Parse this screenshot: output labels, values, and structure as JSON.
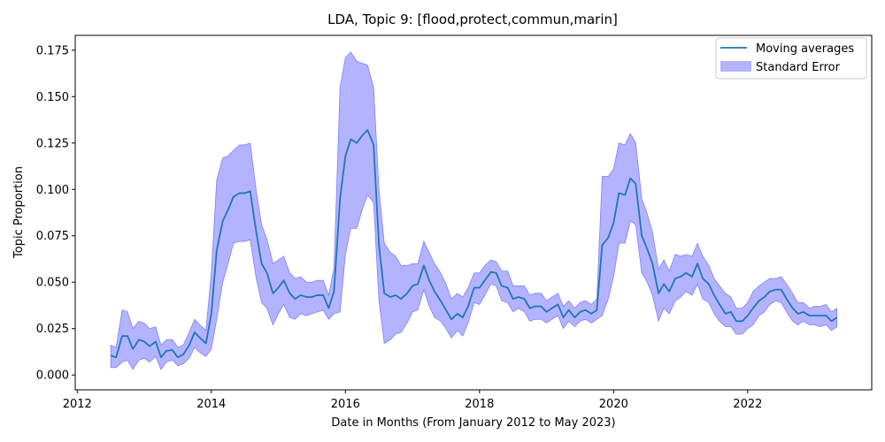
{
  "chart_data": {
    "type": "line",
    "title": "LDA, Topic 9: [flood,protect,commun,marin]",
    "xlabel": "Date in Months (From January 2012 to May 2023)",
    "ylabel": "Topic Proportion",
    "xlim": [
      2011.97,
      2023.85
    ],
    "ylim": [
      -0.008,
      0.183
    ],
    "x_ticks": [
      2012,
      2014,
      2016,
      2018,
      2020,
      2022
    ],
    "y_ticks": [
      0.0,
      0.025,
      0.05,
      0.075,
      0.1,
      0.125,
      0.15,
      0.175
    ],
    "y_tick_labels": [
      "0.000",
      "0.025",
      "0.050",
      "0.075",
      "0.100",
      "0.125",
      "0.150",
      "0.175"
    ],
    "legend": {
      "position": "top-right",
      "entries": [
        "Moving averages",
        "Standard Error"
      ]
    },
    "colors": {
      "line": "#1f77b4",
      "band": "#b3b3ff",
      "band_edge": "#8080ff"
    },
    "series": [
      {
        "name": "Moving averages",
        "x": [
          2012.5,
          2012.58,
          2012.67,
          2012.75,
          2012.83,
          2012.92,
          2013.0,
          2013.08,
          2013.17,
          2013.25,
          2013.33,
          2013.42,
          2013.5,
          2013.58,
          2013.67,
          2013.75,
          2013.83,
          2013.92,
          2014.0,
          2014.08,
          2014.17,
          2014.25,
          2014.33,
          2014.42,
          2014.5,
          2014.58,
          2014.67,
          2014.75,
          2014.83,
          2014.92,
          2015.0,
          2015.08,
          2015.17,
          2015.25,
          2015.33,
          2015.42,
          2015.5,
          2015.58,
          2015.67,
          2015.75,
          2015.83,
          2015.92,
          2016.0,
          2016.08,
          2016.17,
          2016.25,
          2016.33,
          2016.42,
          2016.5,
          2016.58,
          2016.67,
          2016.75,
          2016.83,
          2016.92,
          2017.0,
          2017.08,
          2017.17,
          2017.25,
          2017.33,
          2017.42,
          2017.5,
          2017.58,
          2017.67,
          2017.75,
          2017.83,
          2017.92,
          2018.0,
          2018.08,
          2018.17,
          2018.25,
          2018.33,
          2018.42,
          2018.5,
          2018.58,
          2018.67,
          2018.75,
          2018.83,
          2018.92,
          2019.0,
          2019.08,
          2019.17,
          2019.25,
          2019.33,
          2019.42,
          2019.5,
          2019.58,
          2019.67,
          2019.75,
          2019.83,
          2019.92,
          2020.0,
          2020.08,
          2020.17,
          2020.25,
          2020.33,
          2020.42,
          2020.5,
          2020.58,
          2020.67,
          2020.75,
          2020.83,
          2020.92,
          2021.0,
          2021.08,
          2021.17,
          2021.25,
          2021.33,
          2021.42,
          2021.5,
          2021.58,
          2021.67,
          2021.75,
          2021.83,
          2021.92,
          2022.0,
          2022.08,
          2022.17,
          2022.25,
          2022.33,
          2022.42,
          2022.5,
          2022.58,
          2022.67,
          2022.75,
          2022.83,
          2022.92,
          2023.0,
          2023.08,
          2023.17,
          2023.25,
          2023.33
        ],
        "y": [
          0.0105,
          0.0095,
          0.021,
          0.021,
          0.014,
          0.019,
          0.018,
          0.0155,
          0.018,
          0.0095,
          0.013,
          0.0135,
          0.0095,
          0.011,
          0.016,
          0.023,
          0.02,
          0.017,
          0.033,
          0.067,
          0.083,
          0.089,
          0.096,
          0.098,
          0.098,
          0.099,
          0.077,
          0.06,
          0.055,
          0.044,
          0.047,
          0.051,
          0.044,
          0.041,
          0.043,
          0.042,
          0.042,
          0.043,
          0.043,
          0.036,
          0.045,
          0.095,
          0.118,
          0.127,
          0.125,
          0.129,
          0.132,
          0.124,
          0.07,
          0.044,
          0.042,
          0.043,
          0.041,
          0.044,
          0.048,
          0.049,
          0.059,
          0.051,
          0.045,
          0.04,
          0.035,
          0.03,
          0.033,
          0.031,
          0.037,
          0.047,
          0.047,
          0.051,
          0.0555,
          0.055,
          0.048,
          0.047,
          0.041,
          0.042,
          0.041,
          0.036,
          0.037,
          0.037,
          0.034,
          0.036,
          0.038,
          0.031,
          0.035,
          0.031,
          0.034,
          0.035,
          0.033,
          0.035,
          0.07,
          0.074,
          0.082,
          0.098,
          0.097,
          0.106,
          0.103,
          0.075,
          0.068,
          0.06,
          0.044,
          0.049,
          0.045,
          0.052,
          0.053,
          0.055,
          0.053,
          0.06,
          0.052,
          0.049,
          0.043,
          0.038,
          0.033,
          0.034,
          0.029,
          0.029,
          0.032,
          0.036,
          0.04,
          0.042,
          0.045,
          0.046,
          0.046,
          0.041,
          0.036,
          0.033,
          0.034,
          0.032,
          0.032,
          0.032,
          0.032,
          0.029,
          0.031
        ]
      },
      {
        "name": "Standard Error",
        "upper": [
          0.016,
          0.015,
          0.035,
          0.034,
          0.025,
          0.029,
          0.028,
          0.025,
          0.026,
          0.016,
          0.019,
          0.019,
          0.015,
          0.016,
          0.023,
          0.03,
          0.027,
          0.024,
          0.055,
          0.105,
          0.117,
          0.118,
          0.121,
          0.124,
          0.124,
          0.125,
          0.099,
          0.081,
          0.073,
          0.06,
          0.062,
          0.064,
          0.055,
          0.052,
          0.053,
          0.05,
          0.05,
          0.051,
          0.051,
          0.043,
          0.058,
          0.155,
          0.171,
          0.174,
          0.169,
          0.168,
          0.167,
          0.155,
          0.1,
          0.071,
          0.066,
          0.064,
          0.059,
          0.059,
          0.06,
          0.06,
          0.072,
          0.066,
          0.06,
          0.055,
          0.049,
          0.041,
          0.044,
          0.042,
          0.047,
          0.055,
          0.055,
          0.059,
          0.062,
          0.061,
          0.056,
          0.056,
          0.048,
          0.048,
          0.048,
          0.043,
          0.044,
          0.044,
          0.04,
          0.042,
          0.044,
          0.037,
          0.04,
          0.036,
          0.039,
          0.04,
          0.038,
          0.041,
          0.107,
          0.107,
          0.111,
          0.125,
          0.124,
          0.13,
          0.125,
          0.095,
          0.087,
          0.077,
          0.057,
          0.062,
          0.056,
          0.065,
          0.064,
          0.065,
          0.064,
          0.071,
          0.064,
          0.059,
          0.052,
          0.048,
          0.044,
          0.042,
          0.036,
          0.036,
          0.039,
          0.045,
          0.048,
          0.05,
          0.052,
          0.052,
          0.053,
          0.049,
          0.044,
          0.039,
          0.039,
          0.036,
          0.037,
          0.037,
          0.038,
          0.034,
          0.036
        ],
        "lower": [
          0.004,
          0.004,
          0.007,
          0.008,
          0.003,
          0.008,
          0.009,
          0.007,
          0.01,
          0.003,
          0.007,
          0.008,
          0.005,
          0.006,
          0.009,
          0.015,
          0.012,
          0.01,
          0.014,
          0.03,
          0.05,
          0.06,
          0.071,
          0.072,
          0.072,
          0.073,
          0.052,
          0.039,
          0.036,
          0.027,
          0.033,
          0.038,
          0.031,
          0.03,
          0.033,
          0.032,
          0.033,
          0.034,
          0.035,
          0.03,
          0.033,
          0.034,
          0.065,
          0.079,
          0.079,
          0.089,
          0.097,
          0.093,
          0.04,
          0.017,
          0.019,
          0.022,
          0.023,
          0.028,
          0.034,
          0.035,
          0.046,
          0.037,
          0.031,
          0.029,
          0.025,
          0.02,
          0.024,
          0.021,
          0.028,
          0.039,
          0.038,
          0.043,
          0.049,
          0.048,
          0.04,
          0.039,
          0.034,
          0.036,
          0.034,
          0.029,
          0.03,
          0.03,
          0.028,
          0.03,
          0.032,
          0.025,
          0.029,
          0.026,
          0.029,
          0.03,
          0.028,
          0.03,
          0.032,
          0.041,
          0.053,
          0.071,
          0.071,
          0.083,
          0.081,
          0.055,
          0.05,
          0.043,
          0.029,
          0.036,
          0.033,
          0.04,
          0.042,
          0.045,
          0.043,
          0.049,
          0.041,
          0.039,
          0.033,
          0.029,
          0.026,
          0.026,
          0.022,
          0.022,
          0.025,
          0.027,
          0.032,
          0.034,
          0.038,
          0.04,
          0.039,
          0.034,
          0.029,
          0.027,
          0.029,
          0.027,
          0.027,
          0.026,
          0.027,
          0.024,
          0.026
        ]
      }
    ]
  }
}
